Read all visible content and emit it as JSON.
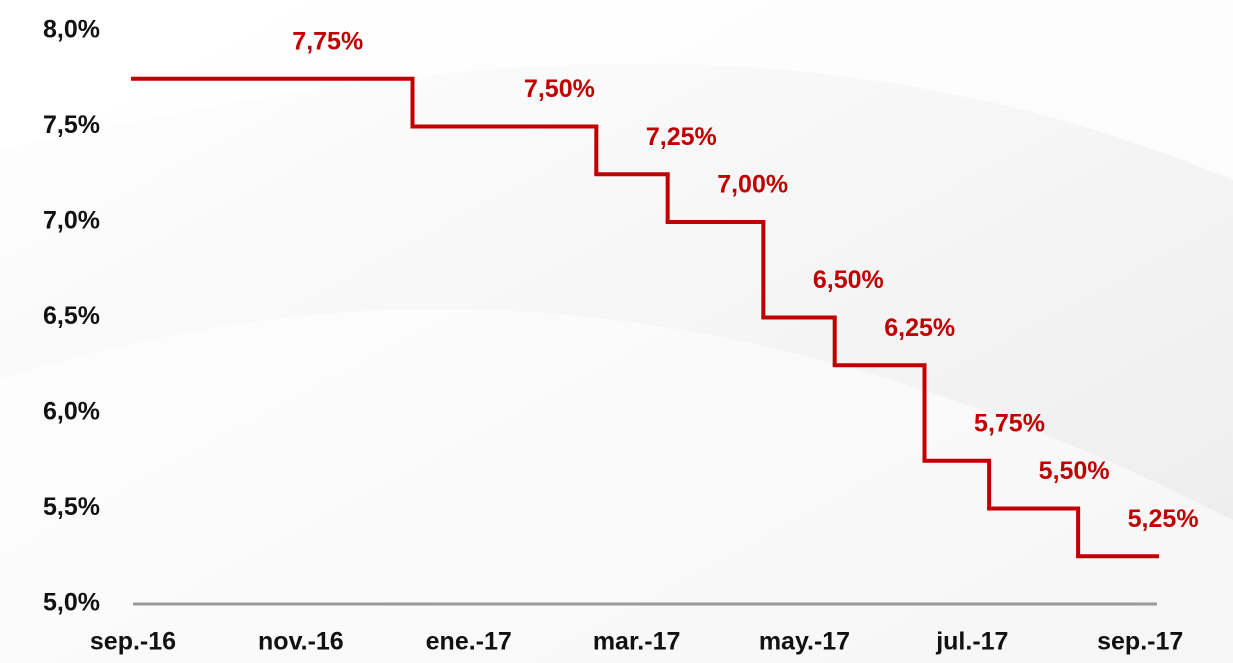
{
  "chart_data": {
    "type": "step",
    "x": [
      0,
      3.33,
      5.52,
      6.37,
      7.51,
      8.36,
      9.43,
      10.2,
      11.26
    ],
    "series": [
      {
        "color": "#c00000",
        "values": [
          7.75,
          7.5,
          7.25,
          7.0,
          6.5,
          6.25,
          5.75,
          5.5,
          5.25
        ],
        "value_labels": [
          "7,75%",
          "7,50%",
          "7,25%",
          "7,00%",
          "6,50%",
          "6,25%",
          "5,75%",
          "5,50%",
          "5,25%"
        ]
      }
    ],
    "xlim": [
      0,
      12.2
    ],
    "xticks": [
      {
        "value": 0,
        "label": "sep.-16"
      },
      {
        "value": 2,
        "label": "nov.-16"
      },
      {
        "value": 4,
        "label": "ene.-17"
      },
      {
        "value": 6,
        "label": "mar.-17"
      },
      {
        "value": 8,
        "label": "may.-17"
      },
      {
        "value": 10,
        "label": "jul.-17"
      },
      {
        "value": 12,
        "label": "sep.-17"
      }
    ],
    "ylim": [
      5.0,
      8.0
    ],
    "yticks": [
      {
        "value": 5.0,
        "label": "5,0%"
      },
      {
        "value": 5.5,
        "label": "5,5%"
      },
      {
        "value": 6.0,
        "label": "6,0%"
      },
      {
        "value": 6.5,
        "label": "6,5%"
      },
      {
        "value": 7.0,
        "label": "7,0%"
      },
      {
        "value": 7.5,
        "label": "7,5%"
      },
      {
        "value": 8.0,
        "label": "8,0%"
      }
    ]
  }
}
